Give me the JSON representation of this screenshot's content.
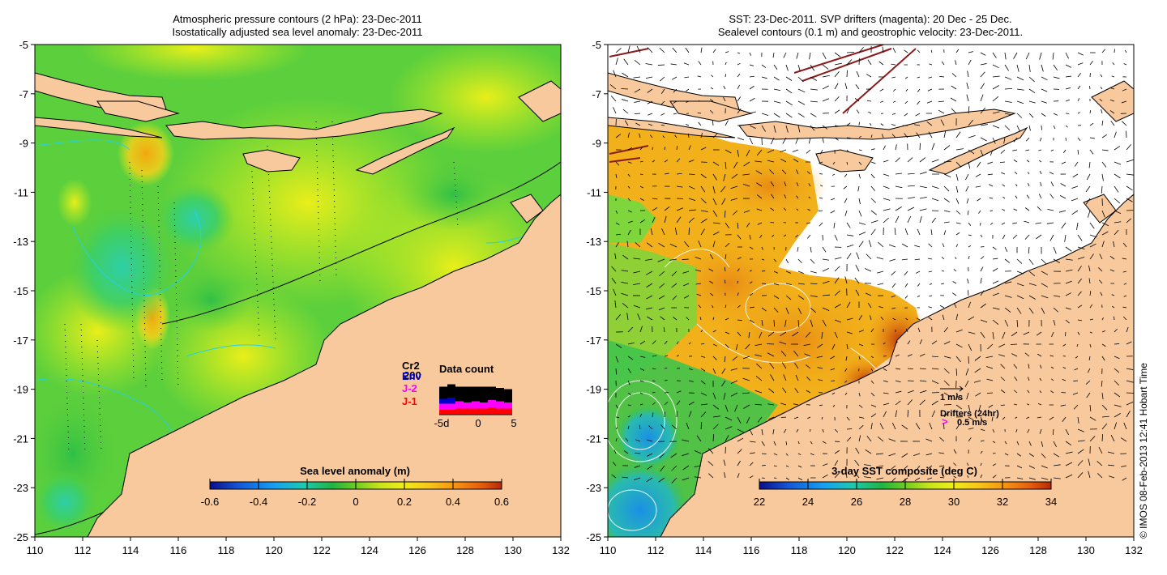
{
  "colors": {
    "land": "#f9c99e",
    "ocean_green": "#7ed63c",
    "ocean_lime": "#c7ef1f",
    "ocean_yellow": "#ecf017",
    "ocean_orange": "#f2a70f",
    "ocean_cyan": "#2ecfa9",
    "sst_orange": "#e88b14",
    "sst_red": "#b8300a",
    "sst_blue": "#1aa0e6",
    "drifter": "#ff00ff",
    "contour_cyan": "#25d0e6"
  },
  "left_panel": {
    "title_line1": "Atmospheric pressure contours (2 hPa): 23-Dec-2011",
    "title_line2": "Isostatically adjusted sea level anomaly: 23-Dec-2011",
    "colorbar": {
      "title": "Sea level anomaly (m)",
      "min": -0.6,
      "max": 0.6,
      "ticks": [
        "-0.6",
        "-0.4",
        "-0.2",
        "0",
        "0.2",
        "0.4",
        "0.6"
      ],
      "colors": [
        "#0a0f8a",
        "#1457d8",
        "#15a0f2",
        "#1fc8b0",
        "#1fb544",
        "#46c622",
        "#9ad81c",
        "#e9ee1a",
        "#f7c71a",
        "#f59512",
        "#e45d0f",
        "#b52a08"
      ]
    },
    "data_count": {
      "title": "Data count",
      "legend": [
        {
          "label": "Cr2",
          "color": "#000000"
        },
        {
          "label": "200",
          "color": "#000000"
        },
        {
          "label": "Env",
          "color": "#0000cc"
        },
        {
          "label": "J-2",
          "color": "#ff00ff"
        },
        {
          "label": "J-1",
          "color": "#ff0000"
        }
      ],
      "x_labels": [
        "-5d",
        "0",
        "5"
      ],
      "bars": [
        {
          "J-1": 4,
          "J-2": 5,
          "Env": 4,
          "Cr2": 10
        },
        {
          "J-1": 4,
          "J-2": 5,
          "Env": 5,
          "Cr2": 11
        },
        {
          "J-1": 5,
          "J-2": 6,
          "Env": 0,
          "Cr2": 12
        },
        {
          "J-1": 5,
          "J-2": 5,
          "Env": 0,
          "Cr2": 13
        },
        {
          "J-1": 5,
          "J-2": 6,
          "Env": 0,
          "Cr2": 12
        },
        {
          "J-1": 5,
          "J-2": 5,
          "Env": 0,
          "Cr2": 13
        },
        {
          "J-1": 6,
          "J-2": 6,
          "Env": 0,
          "Cr2": 11
        },
        {
          "J-1": 5,
          "J-2": 6,
          "Env": 0,
          "Cr2": 11
        },
        {
          "J-1": 5,
          "J-2": 5,
          "Env": 0,
          "Cr2": 11
        }
      ]
    }
  },
  "right_panel": {
    "title_line1": "SST: 23-Dec-2011. SVP drifters (magenta): 20 Dec - 25 Dec.",
    "title_line2": "Sealevel contours (0.1 m) and geostrophic velocity: 23-Dec-2011.",
    "velocity_scale": "1 m/s",
    "drifter_title": "Drifters (24hr)",
    "drifter_symbol": ">",
    "drifter_speed": "0.5 m/s",
    "colorbar": {
      "title": "3-day SST composite (deg C)",
      "min": 22,
      "max": 34,
      "ticks": [
        "22",
        "24",
        "26",
        "28",
        "30",
        "32",
        "34"
      ],
      "colors": [
        "#0a0f8a",
        "#1457d8",
        "#15a0f2",
        "#1fc8b0",
        "#1fb544",
        "#46c622",
        "#9ad81c",
        "#e9ee1a",
        "#f7c71a",
        "#f59512",
        "#e45d0f",
        "#b52a08"
      ]
    }
  },
  "axes": {
    "lon_ticks": [
      "110",
      "112",
      "114",
      "116",
      "118",
      "120",
      "122",
      "124",
      "126",
      "128",
      "130",
      "132"
    ],
    "lat_ticks": [
      "-5",
      "-7",
      "-9",
      "-11",
      "-13",
      "-15",
      "-17",
      "-19",
      "-21",
      "-23",
      "-25"
    ],
    "lon_min": 110,
    "lon_max": 132,
    "lat_min": -25,
    "lat_max": -5
  },
  "credit": "© IMOS 08-Feb-2013 12:41 Hobart Time"
}
